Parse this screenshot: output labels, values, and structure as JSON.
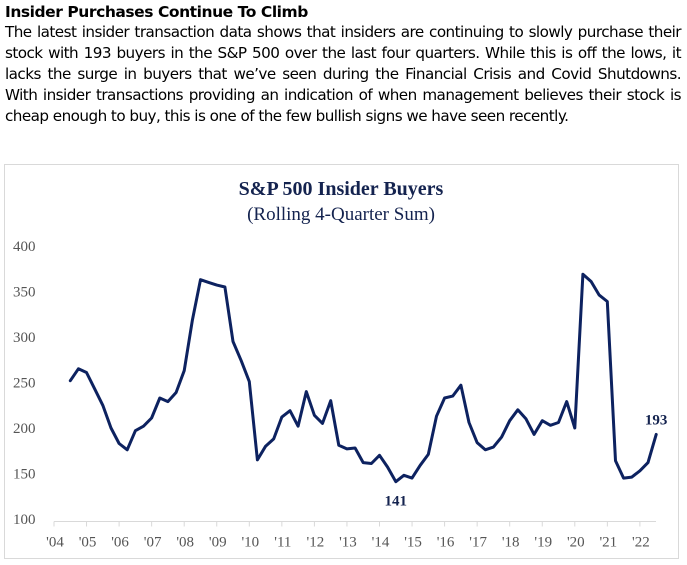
{
  "article": {
    "headline": "Insider Purchases Continue To Climb",
    "body": "The latest insider transaction data shows that insiders are continuing to slowly purchase their stock with 193 buyers in the S&P 500 over the last four quarters. While this is off the lows, it lacks the surge in buyers that we’ve seen during the Financial Crisis and Covid Shutdowns. With insider transactions providing an indication of when management believes their stock is cheap enough to buy, this is one of the few bullish signs we have seen recently."
  },
  "chart_data": {
    "type": "line",
    "title": "S&P 500 Insider Buyers",
    "subtitle": "(Rolling 4-Quarter Sum)",
    "xlabel": "",
    "ylabel": "",
    "ylim": [
      100,
      400
    ],
    "yticks": [
      100,
      150,
      200,
      250,
      300,
      350,
      400
    ],
    "xlim": [
      2004,
      2022.9
    ],
    "xticks": [
      2004,
      2005,
      2006,
      2007,
      2008,
      2009,
      2010,
      2011,
      2012,
      2013,
      2014,
      2015,
      2016,
      2017,
      2018,
      2019,
      2020,
      2021,
      2022
    ],
    "xtick_labels": [
      "'04",
      "'05",
      "'06",
      "'07",
      "'08",
      "'09",
      "'10",
      "'11",
      "'12",
      "'13",
      "'14",
      "'15",
      "'16",
      "'17",
      "'18",
      "'19",
      "'20",
      "'21",
      "'22"
    ],
    "grid": false,
    "line_color": "#0d2260",
    "series": [
      {
        "name": "S&P 500 Insider Buyers (Rolling 4-Quarter Sum)",
        "x_start": 2004.5,
        "x_step": 0.25,
        "values": [
          252,
          265,
          261,
          243,
          225,
          200,
          183,
          176,
          197,
          202,
          211,
          233,
          229,
          239,
          263,
          318,
          363,
          360,
          357,
          355,
          295,
          274,
          251,
          165,
          180,
          188,
          212,
          219,
          202,
          240,
          214,
          205,
          230,
          181,
          177,
          178,
          162,
          161,
          170,
          157,
          141,
          148,
          145,
          159,
          171,
          213,
          233,
          235,
          247,
          206,
          184,
          176,
          179,
          190,
          208,
          220,
          210,
          193,
          208,
          203,
          206,
          229,
          200,
          369,
          361,
          346,
          339,
          164,
          145,
          146,
          153,
          162,
          193
        ]
      }
    ],
    "annotations": [
      {
        "text": "141",
        "x": 2014.5,
        "y": 141,
        "position": "below"
      },
      {
        "text": "193",
        "x": 2022.5,
        "y": 193,
        "position": "above"
      }
    ]
  }
}
